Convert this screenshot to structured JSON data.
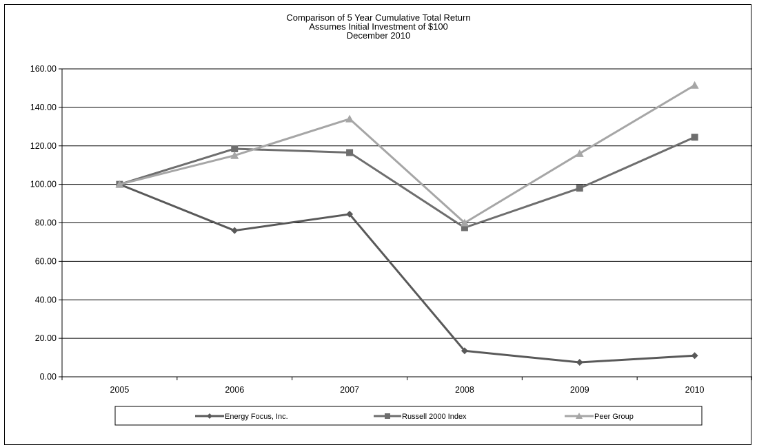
{
  "chart_data": {
    "type": "line",
    "title_lines": [
      "Comparison of 5 Year Cumulative  Total Return",
      "Assumes Initial Investment of $100",
      "December 2010"
    ],
    "xlabel": "",
    "ylabel": "",
    "categories": [
      "2005",
      "2006",
      "2007",
      "2008",
      "2009",
      "2010"
    ],
    "ylim": [
      0,
      160
    ],
    "yticks": [
      "0.00",
      "20.00",
      "40.00",
      "60.00",
      "80.00",
      "100.00",
      "120.00",
      "140.00",
      "160.00"
    ],
    "grid": true,
    "legend_position": "bottom",
    "series": [
      {
        "name": "Energy Focus, Inc.",
        "marker": "diamond",
        "color": "#595959",
        "values": [
          100,
          76,
          84.5,
          13.5,
          7.5,
          11
        ]
      },
      {
        "name": "Russell 2000 Index",
        "marker": "square",
        "color": "#6e6e6e",
        "values": [
          100,
          118.5,
          116.5,
          77.5,
          98,
          124.5
        ]
      },
      {
        "name": "Peer Group",
        "marker": "triangle",
        "color": "#a6a6a6",
        "values": [
          100,
          115,
          134,
          80,
          116,
          151.5
        ]
      }
    ]
  }
}
